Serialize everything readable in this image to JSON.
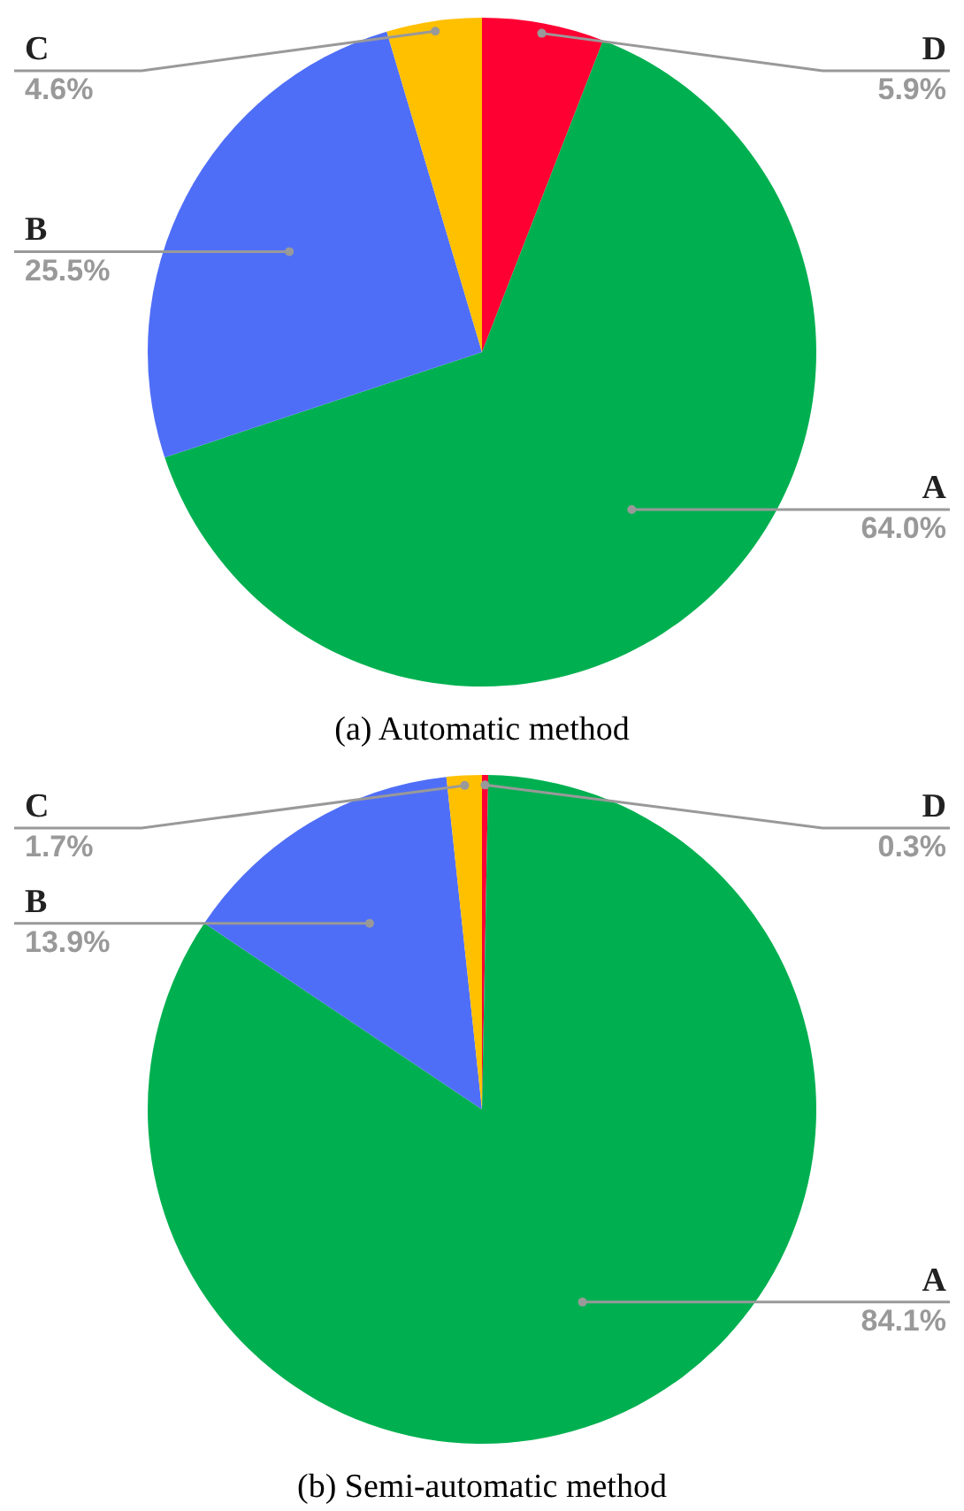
{
  "chart_data": [
    {
      "type": "pie",
      "title": "(a) Automatic method",
      "categories": [
        "D",
        "A",
        "B",
        "C"
      ],
      "values": [
        5.9,
        64.0,
        25.5,
        4.6
      ],
      "value_labels": [
        "5.9%",
        "64.0%",
        "25.5%",
        "4.6%"
      ],
      "colors": [
        "#ff0033",
        "#00b050",
        "#4f6ef7",
        "#ffc000"
      ],
      "legend": false
    },
    {
      "type": "pie",
      "title": "(b) Semi-automatic method",
      "categories": [
        "D",
        "A",
        "B",
        "C"
      ],
      "values": [
        0.3,
        84.1,
        13.9,
        1.7
      ],
      "value_labels": [
        "0.3%",
        "84.1%",
        "13.9%",
        "1.7%"
      ],
      "colors": [
        "#ff0033",
        "#00b050",
        "#4f6ef7",
        "#ffc000"
      ],
      "legend": false
    }
  ]
}
